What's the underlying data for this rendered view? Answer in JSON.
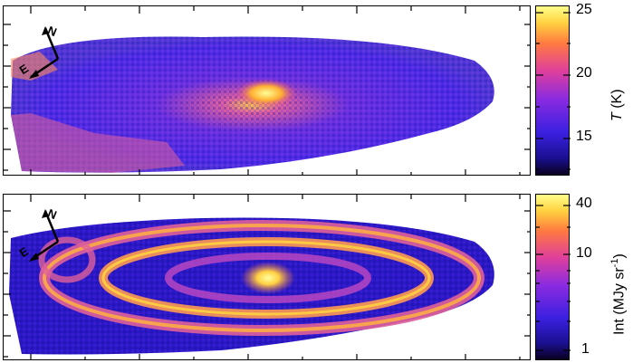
{
  "top_panel": {
    "colorbar": {
      "ticks": [
        "25",
        "20",
        "15"
      ],
      "label_prefix": "T",
      "label_unit": "(K)"
    },
    "compass": {
      "north": "N",
      "east": "E"
    }
  },
  "bottom_panel": {
    "colorbar": {
      "ticks": [
        "40",
        "10",
        "1"
      ],
      "label_prefix": "Int",
      "label_unit": "(MJy sr",
      "label_exp": "-1",
      "label_close": ")"
    },
    "compass": {
      "north": "N",
      "east": "E"
    }
  },
  "colors": {
    "colormap": [
      "#0a0020",
      "#1a1090",
      "#3a20e0",
      "#8a2be0",
      "#e0409a",
      "#ff7a40",
      "#ffd040",
      "#ffff8a"
    ]
  }
}
